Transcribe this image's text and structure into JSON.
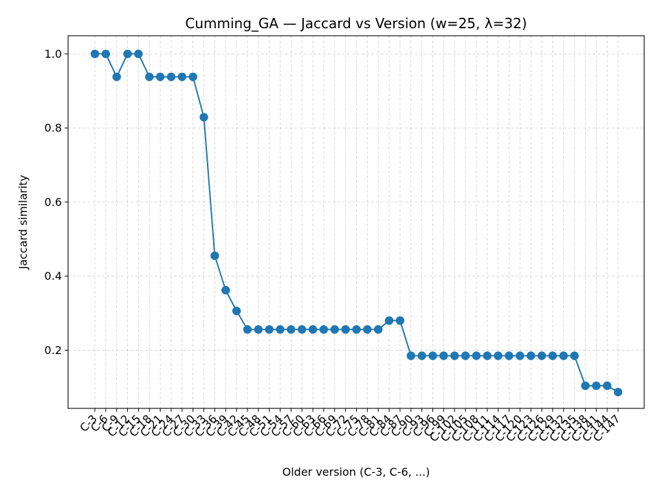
{
  "chart_data": {
    "type": "line",
    "title": "Cumming_GA — Jaccard vs Version (w=25, λ=32)",
    "xlabel": "Older version (C-3, C-6, ...)",
    "ylabel": "Jaccard similarity",
    "ylim": [
      0.043,
      1.049
    ],
    "yticks": [
      "0.2",
      "0.4",
      "0.6",
      "0.8",
      "1.0"
    ],
    "grid": true,
    "categories": [
      "C-3",
      "C-6",
      "C-9",
      "C-12",
      "C-15",
      "C-18",
      "C-21",
      "C-24",
      "C-27",
      "C-30",
      "C-33",
      "C-36",
      "C-39",
      "C-42",
      "C-45",
      "C-48",
      "C-51",
      "C-54",
      "C-57",
      "C-60",
      "C-63",
      "C-66",
      "C-69",
      "C-72",
      "C-75",
      "C-78",
      "C-81",
      "C-84",
      "C-87",
      "C-90",
      "C-93",
      "C-96",
      "C-99",
      "C-102",
      "C-105",
      "C-108",
      "C-111",
      "C-114",
      "C-117",
      "C-120",
      "C-123",
      "C-126",
      "C-129",
      "C-132",
      "C-135",
      "C-138",
      "C-141",
      "C-144",
      "C-147"
    ],
    "series": [
      {
        "color": "#1f77b4",
        "values": [
          1.0,
          1.0,
          0.938,
          1.0,
          1.0,
          0.938,
          0.938,
          0.938,
          0.938,
          0.938,
          0.829,
          0.455,
          0.362,
          0.306,
          0.256,
          0.256,
          0.256,
          0.256,
          0.256,
          0.256,
          0.256,
          0.256,
          0.256,
          0.256,
          0.256,
          0.256,
          0.256,
          0.28,
          0.28,
          0.185,
          0.185,
          0.185,
          0.185,
          0.185,
          0.185,
          0.185,
          0.185,
          0.185,
          0.185,
          0.185,
          0.185,
          0.185,
          0.185,
          0.185,
          0.185,
          0.104,
          0.104,
          0.104,
          0.087
        ]
      }
    ]
  }
}
